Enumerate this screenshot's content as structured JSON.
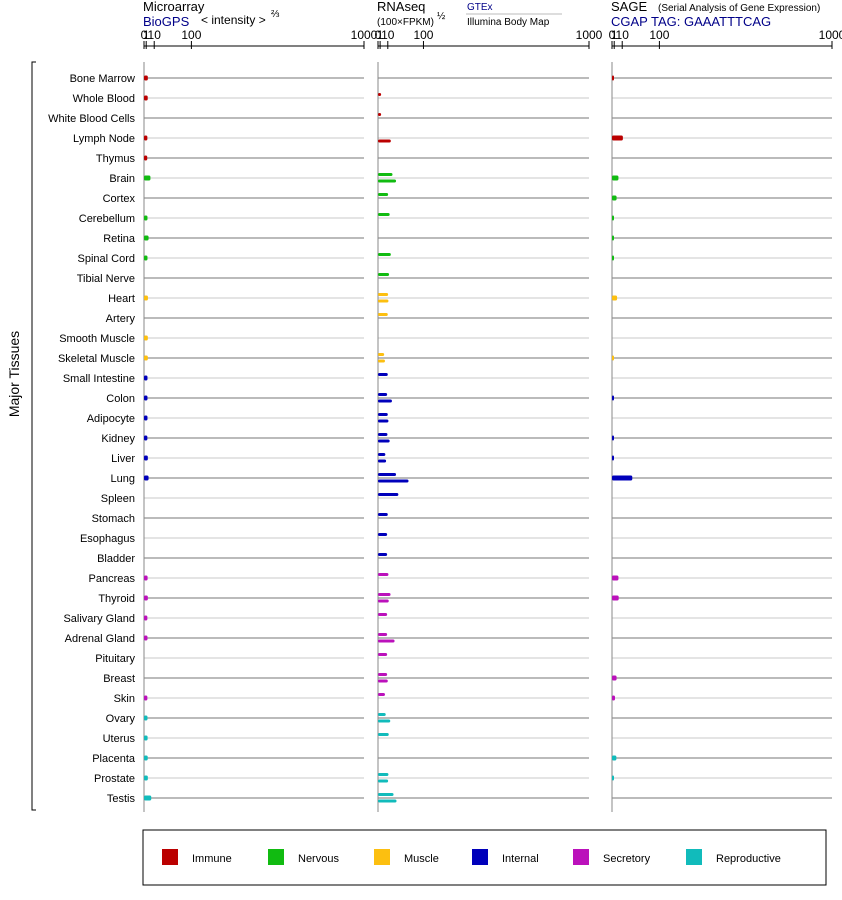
{
  "panels": {
    "microarray": {
      "title": "Microarray",
      "source": "BioGPS",
      "unit": "< intensity >",
      "unit_exp": "⅔"
    },
    "rnaseq": {
      "title": "RNAseq",
      "unit": "(100×FPKM)",
      "unit_exp": "½",
      "source1": "GTEx",
      "source2": "Illumina Body Map"
    },
    "sage": {
      "title": "SAGE",
      "subtitle": "(Serial Analysis of Gene Expression)",
      "tag_line": "CGAP TAG: GAAATTTCAG"
    }
  },
  "y_group_label": "Major Tissues",
  "colors": {
    "Immune": "#bb0000",
    "Nervous": "#11bb11",
    "Muscle": "#fcbf10",
    "Internal": "#0000bb",
    "Secretory": "#bb11bb",
    "Reproductive": "#11bbbb"
  },
  "legend": [
    "Immune",
    "Nervous",
    "Muscle",
    "Internal",
    "Secretory",
    "Reproductive"
  ],
  "chart_data": {
    "type": "bar",
    "orientation": "horizontal",
    "x_scale": "power",
    "xlim": [
      0,
      1000
    ],
    "ticks": [
      0,
      1,
      10,
      100,
      1000
    ],
    "categories": [
      "Bone Marrow",
      "Whole Blood",
      "White Blood Cells",
      "Lymph Node",
      "Thymus",
      "Brain",
      "Cortex",
      "Cerebellum",
      "Retina",
      "Spinal Cord",
      "Tibial Nerve",
      "Heart",
      "Artery",
      "Smooth Muscle",
      "Skeletal Muscle",
      "Small Intestine",
      "Colon",
      "Adipocyte",
      "Kidney",
      "Liver",
      "Lung",
      "Spleen",
      "Stomach",
      "Esophagus",
      "Bladder",
      "Pancreas",
      "Thyroid",
      "Salivary Gland",
      "Adrenal Gland",
      "Pituitary",
      "Breast",
      "Skin",
      "Ovary",
      "Uterus",
      "Placenta",
      "Prostate",
      "Testis"
    ],
    "groups": [
      "Immune",
      "Immune",
      "Immune",
      "Immune",
      "Immune",
      "Nervous",
      "Nervous",
      "Nervous",
      "Nervous",
      "Nervous",
      "Nervous",
      "Muscle",
      "Muscle",
      "Muscle",
      "Muscle",
      "Internal",
      "Internal",
      "Internal",
      "Internal",
      "Internal",
      "Internal",
      "Internal",
      "Internal",
      "Internal",
      "Internal",
      "Secretory",
      "Secretory",
      "Secretory",
      "Secretory",
      "Secretory",
      "Secretory",
      "Secretory",
      "Reproductive",
      "Reproductive",
      "Reproductive",
      "Reproductive",
      "Reproductive"
    ],
    "microarray": [
      2.3,
      2.2,
      null,
      1.9,
      1.8,
      5.0,
      null,
      2.0,
      3.0,
      2.0,
      null,
      2.4,
      null,
      2.3,
      2.3,
      2.0,
      2.0,
      2.0,
      1.9,
      2.3,
      3.0,
      null,
      null,
      null,
      null,
      2.1,
      2.3,
      1.9,
      2.0,
      null,
      null,
      1.9,
      2.0,
      2.1,
      2.2,
      2.3,
      6.0
    ],
    "rnaseq_gtex": [
      null,
      1.8,
      1.8,
      null,
      null,
      18,
      10.5,
      13,
      null,
      15,
      12,
      10.5,
      10,
      null,
      5,
      10,
      9,
      10,
      9.5,
      6.5,
      25,
      30,
      10,
      9,
      9,
      11,
      14.5,
      9,
      9,
      9,
      9,
      6,
      7,
      11.5,
      null,
      11,
      20
    ],
    "rnaseq_ibm": [
      null,
      null,
      null,
      15,
      null,
      25,
      null,
      null,
      null,
      null,
      null,
      11,
      null,
      null,
      6,
      null,
      17,
      11,
      13,
      7.5,
      55,
      null,
      null,
      null,
      null,
      null,
      11.5,
      null,
      22,
      null,
      10,
      null,
      14,
      null,
      null,
      10.5,
      26
    ],
    "sage": [
      0.05,
      null,
      null,
      11,
      null,
      5,
      3,
      0.05,
      0.05,
      0.05,
      null,
      3.5,
      null,
      null,
      0.05,
      null,
      0.1,
      null,
      0.1,
      0.1,
      28,
      null,
      null,
      null,
      null,
      5,
      5.3,
      null,
      null,
      null,
      3,
      1.6,
      null,
      null,
      2.8,
      0.05,
      null
    ]
  }
}
